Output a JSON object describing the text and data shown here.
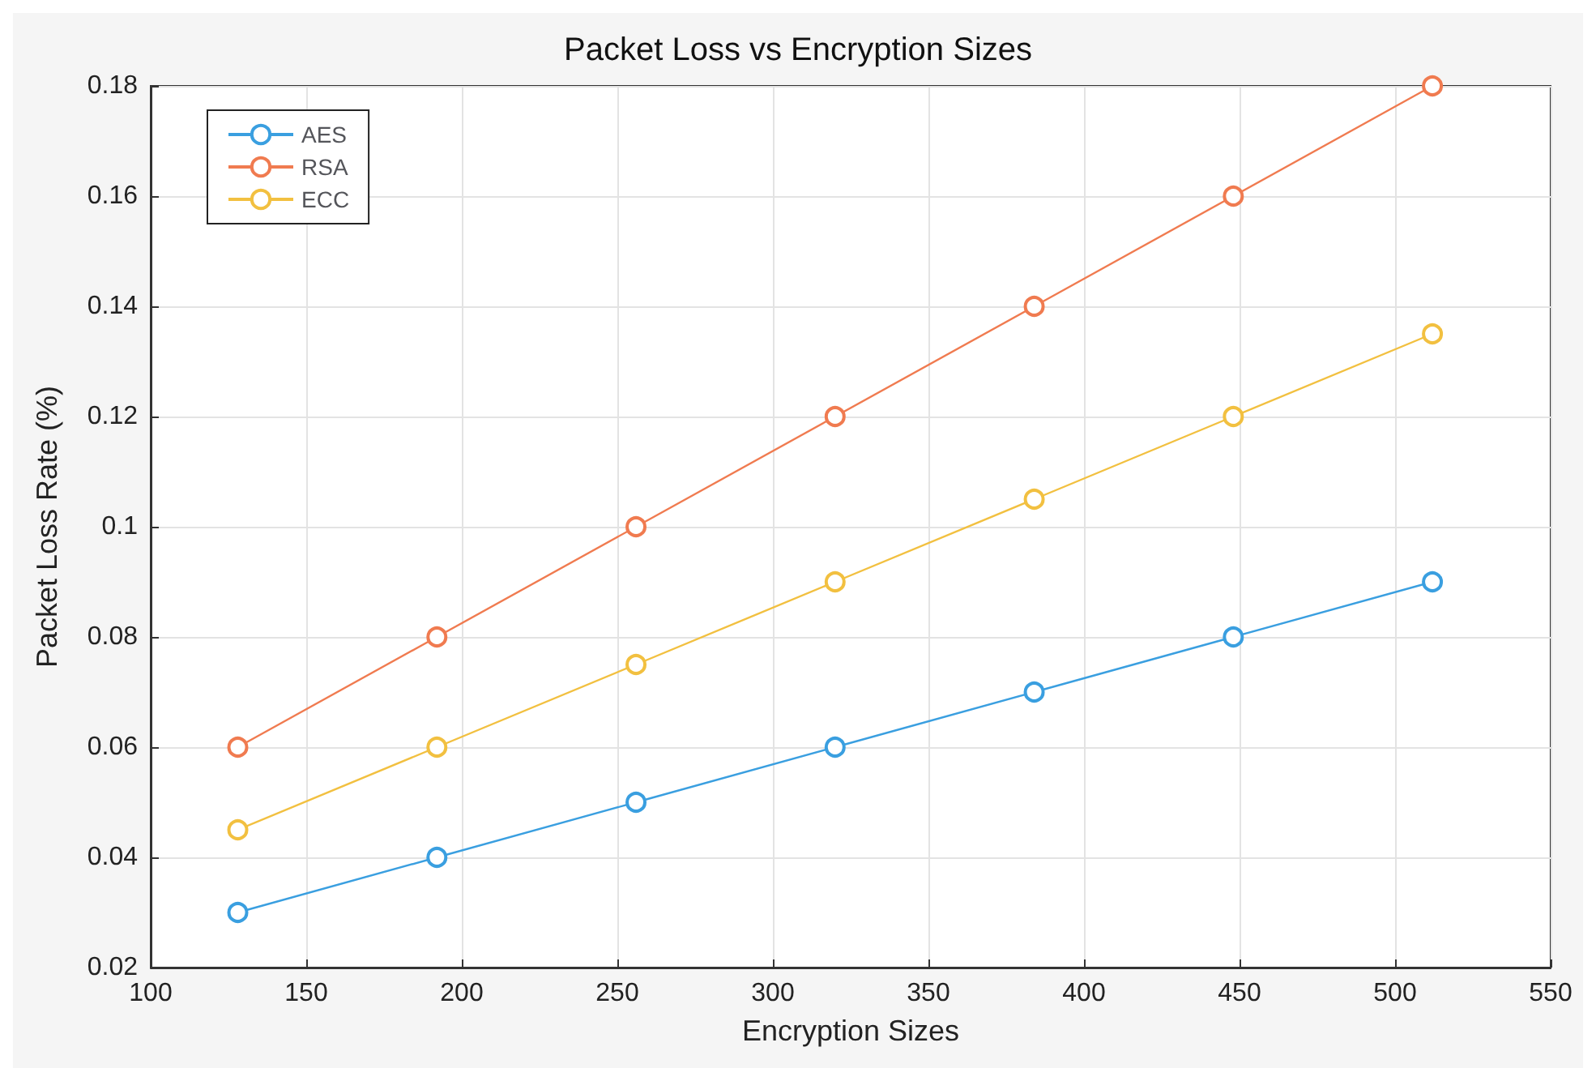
{
  "chart_data": {
    "type": "line",
    "title": "Packet Loss vs Encryption Sizes",
    "xlabel": "Encryption Sizes",
    "ylabel": "Packet Loss Rate (%)",
    "x": [
      128,
      192,
      256,
      320,
      384,
      448,
      512
    ],
    "series": [
      {
        "name": "AES",
        "color": "#3a9fe0",
        "values": [
          0.03,
          0.04,
          0.05,
          0.06,
          0.07,
          0.08,
          0.09
        ]
      },
      {
        "name": "RSA",
        "color": "#f07b50",
        "values": [
          0.06,
          0.08,
          0.1,
          0.12,
          0.14,
          0.16,
          0.18
        ]
      },
      {
        "name": "ECC",
        "color": "#f2c040",
        "values": [
          0.045,
          0.06,
          0.075,
          0.09,
          0.105,
          0.12,
          0.135
        ]
      }
    ],
    "xlim": [
      100,
      550
    ],
    "xticks": [
      100,
      150,
      200,
      250,
      300,
      350,
      400,
      450,
      500,
      550
    ],
    "ylim": [
      0.02,
      0.18
    ],
    "yticks": [
      0.02,
      0.04,
      0.06,
      0.08,
      0.1,
      0.12,
      0.14,
      0.16,
      0.18
    ],
    "grid": true,
    "legend": "top left",
    "marker": "circle",
    "line_style": "solid"
  }
}
